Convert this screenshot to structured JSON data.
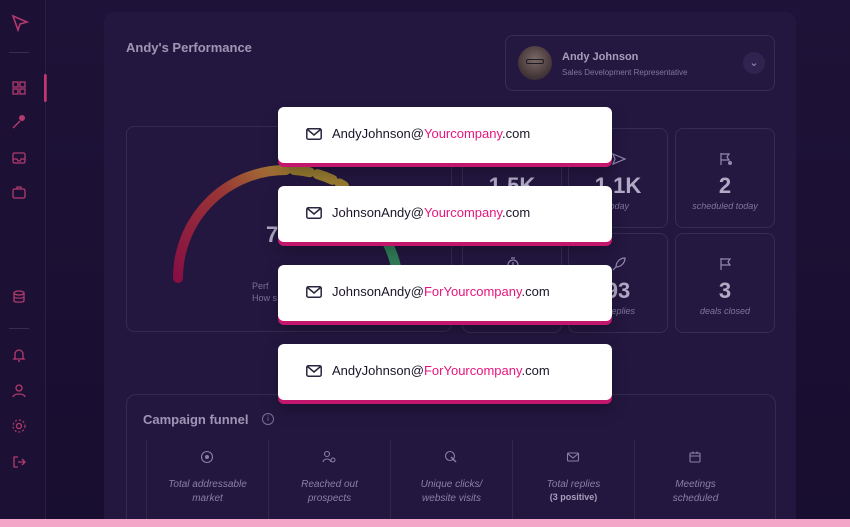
{
  "page": {
    "title": "Andy's Performance",
    "colors": {
      "accent": "#e6157d",
      "panel": "#2a1c49",
      "background": "#1b1033"
    }
  },
  "user": {
    "name": "Andy Johnson",
    "role": "Sales Development Representative",
    "dropdown_icon": "chevron-down-icon"
  },
  "gauge": {
    "value_partial": "7",
    "caption_line1": "Perf",
    "caption_line2": "How s"
  },
  "metrics": [
    {
      "icon": "send-icon",
      "value": "1.5K",
      "label": ""
    },
    {
      "icon": "send-icon",
      "value": "1.1K",
      "label": "today"
    },
    {
      "icon": "calendar-icon",
      "value": "2",
      "label": "scheduled today"
    },
    {
      "icon": "timer-icon",
      "value": "",
      "label": ""
    },
    {
      "icon": "rocket-icon",
      "value": "93",
      "label": "e replies"
    },
    {
      "icon": "flag-icon",
      "value": "3",
      "label": "deals closed"
    }
  ],
  "emails": [
    {
      "user": "AndyJohnson@",
      "domain": "Yourcompany",
      "tld": ".com"
    },
    {
      "user": "JohnsonAndy@",
      "domain": "Yourcompany",
      "tld": ".com"
    },
    {
      "user": "JohnsonAndy@",
      "domain": "ForYourcompany",
      "tld": ".com"
    },
    {
      "user": "AndyJohnson@",
      "domain": "ForYourcompany",
      "tld": ".com"
    }
  ],
  "funnel": {
    "title": "Campaign funnel",
    "info_icon": "info-icon",
    "columns": [
      {
        "icon": "target-icon",
        "line1": "Total addressable",
        "line2": "market",
        "sub": ""
      },
      {
        "icon": "users-icon",
        "line1": "Reached out",
        "line2": "prospects",
        "sub": ""
      },
      {
        "icon": "click-icon",
        "line1": "Unique clicks/",
        "line2": "website visits",
        "sub": ""
      },
      {
        "icon": "mail-icon",
        "line1": "Total replies",
        "line2": "",
        "sub": "(3 positive)"
      },
      {
        "icon": "calendar-icon",
        "line1": "Meetings",
        "line2": "scheduled",
        "sub": ""
      }
    ]
  },
  "sidebar": {
    "items": [
      {
        "icon": "logo-arrow-icon"
      },
      {
        "icon": "dashboard-grid-icon"
      },
      {
        "icon": "campaign-icon"
      },
      {
        "icon": "inbox-icon"
      },
      {
        "icon": "briefcase-icon"
      },
      {
        "icon": "database-icon"
      },
      {
        "icon": "bell-icon"
      },
      {
        "icon": "user-icon"
      },
      {
        "icon": "settings-icon"
      },
      {
        "icon": "logout-icon"
      }
    ]
  }
}
